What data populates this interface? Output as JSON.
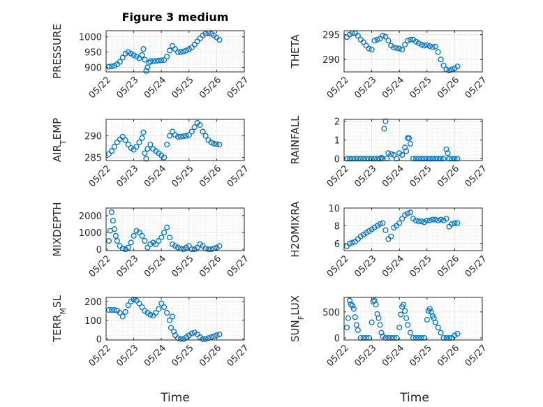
{
  "figure": {
    "title": "Figure 3 medium",
    "marker_color": "#0072BD",
    "xlabel": "Time",
    "x_ticks": [
      "05/22",
      "05/23",
      "05/24",
      "05/25",
      "05/26",
      "05/27"
    ]
  },
  "chart_data": [
    {
      "type": "scatter",
      "ylabel": "PRESSURE",
      "xlim": [
        0,
        5
      ],
      "ylim": [
        885,
        1020
      ],
      "y_ticks": [
        900,
        950,
        1000
      ],
      "y_tick_labels": [
        "900",
        "950",
        "1000"
      ],
      "grid": true,
      "x": [
        0.1,
        0.2,
        0.3,
        0.4,
        0.5,
        0.6,
        0.7,
        0.8,
        0.9,
        1.0,
        1.1,
        1.2,
        1.3,
        1.35,
        1.4,
        1.45,
        1.5,
        1.55,
        1.6,
        1.7,
        1.8,
        1.9,
        2.0,
        2.1,
        2.2,
        2.3,
        2.4,
        2.5,
        2.6,
        2.7,
        2.8,
        2.9,
        3.0,
        3.1,
        3.2,
        3.3,
        3.4,
        3.5,
        3.6,
        3.7,
        3.8,
        3.9,
        4.0,
        4.1
      ],
      "y": [
        902,
        903,
        905,
        910,
        918,
        932,
        945,
        950,
        945,
        940,
        935,
        930,
        940,
        960,
        925,
        888,
        900,
        915,
        920,
        920,
        921,
        922,
        923,
        924,
        935,
        955,
        970,
        960,
        950,
        950,
        952,
        955,
        960,
        965,
        975,
        985,
        995,
        1005,
        1010,
        1012,
        1010,
        1005,
        998,
        990
      ]
    },
    {
      "type": "scatter",
      "ylabel": "THETA",
      "xlim": [
        0,
        5
      ],
      "ylim": [
        287.5,
        295.8
      ],
      "y_ticks": [
        290,
        295
      ],
      "y_tick_labels": [
        "290",
        "295"
      ],
      "grid": true,
      "x": [
        0.1,
        0.2,
        0.3,
        0.4,
        0.5,
        0.6,
        0.7,
        0.8,
        0.9,
        1.0,
        1.1,
        1.2,
        1.3,
        1.4,
        1.5,
        1.6,
        1.7,
        1.8,
        1.9,
        2.0,
        2.1,
        2.2,
        2.3,
        2.4,
        2.5,
        2.6,
        2.7,
        2.8,
        2.9,
        3.0,
        3.1,
        3.2,
        3.3,
        3.4,
        3.5,
        3.6,
        3.7,
        3.8,
        3.9,
        4.0,
        4.1
      ],
      "y": [
        294.5,
        295.0,
        295.3,
        295.3,
        294.8,
        294.0,
        293.5,
        292.8,
        292.2,
        292.0,
        293.8,
        294.0,
        294.2,
        294.8,
        294.6,
        293.8,
        292.8,
        292.4,
        292.3,
        292.2,
        292.0,
        293.0,
        293.8,
        294.0,
        294.0,
        293.6,
        293.3,
        293.0,
        292.8,
        292.9,
        292.7,
        292.5,
        292.6,
        291.5,
        290.0,
        288.8,
        288.0,
        287.8,
        288.0,
        288.2,
        288.6
      ]
    },
    {
      "type": "scatter",
      "ylabel": "AIR_TEMP",
      "xlim": [
        0,
        5
      ],
      "ylim": [
        284.3,
        293.8
      ],
      "y_ticks": [
        285,
        290
      ],
      "y_tick_labels": [
        "285",
        "290"
      ],
      "grid": true,
      "x": [
        0.1,
        0.2,
        0.3,
        0.4,
        0.5,
        0.6,
        0.7,
        0.8,
        0.9,
        1.0,
        1.1,
        1.2,
        1.3,
        1.35,
        1.4,
        1.45,
        1.5,
        1.6,
        1.7,
        1.8,
        1.9,
        2.0,
        2.1,
        2.2,
        2.3,
        2.4,
        2.5,
        2.6,
        2.7,
        2.8,
        2.9,
        3.0,
        3.1,
        3.2,
        3.3,
        3.4,
        3.5,
        3.6,
        3.7,
        3.8,
        3.9,
        4.0,
        4.1
      ],
      "y": [
        285.8,
        286.5,
        287.5,
        288.5,
        289.2,
        289.8,
        289.0,
        288.0,
        287.2,
        286.8,
        287.5,
        288.5,
        289.5,
        290.8,
        286.0,
        284.7,
        287.0,
        288.0,
        287.0,
        286.5,
        286.0,
        285.5,
        285.0,
        288.0,
        290.0,
        291.0,
        290.2,
        289.8,
        289.8,
        289.9,
        290.0,
        290.2,
        291.0,
        292.0,
        293.0,
        292.5,
        291.0,
        290.0,
        289.0,
        288.5,
        288.2,
        288.1,
        288.0
      ]
    },
    {
      "type": "scatter",
      "ylabel": "RAINFALL",
      "xlim": [
        0,
        5
      ],
      "ylim": [
        -0.1,
        2.1
      ],
      "y_ticks": [
        0,
        1,
        2
      ],
      "y_tick_labels": [
        "0",
        "1",
        "2"
      ],
      "grid": true,
      "x": [
        0.1,
        0.2,
        0.3,
        0.4,
        0.5,
        0.6,
        0.7,
        0.8,
        0.9,
        1.0,
        1.1,
        1.2,
        1.3,
        1.35,
        1.4,
        1.45,
        1.5,
        1.55,
        1.6,
        1.7,
        1.8,
        1.9,
        2.0,
        2.1,
        2.2,
        2.25,
        2.3,
        2.35,
        2.4,
        2.5,
        2.6,
        2.7,
        2.8,
        2.9,
        3.0,
        3.1,
        3.2,
        3.3,
        3.4,
        3.5,
        3.6,
        3.7,
        3.75,
        3.8,
        3.9,
        4.0,
        4.1
      ],
      "y": [
        0,
        0,
        0,
        0,
        0,
        0,
        0,
        0,
        0,
        0,
        0,
        0,
        0,
        0.05,
        0,
        1.6,
        2.0,
        0,
        0.3,
        0.25,
        0.2,
        0,
        0.3,
        0.2,
        0.6,
        0.4,
        1.1,
        1.1,
        0.8,
        0,
        0,
        0,
        0,
        0,
        0,
        0,
        0,
        0,
        0,
        0,
        0,
        0.5,
        0.3,
        0,
        0,
        0,
        0
      ]
    },
    {
      "type": "scatter",
      "ylabel": "MIXDEPTH",
      "xlim": [
        0,
        5
      ],
      "ylim": [
        -80,
        2450
      ],
      "y_ticks": [
        0,
        1000,
        2000
      ],
      "y_tick_labels": [
        "0",
        "1000",
        "2000"
      ],
      "grid": true,
      "x": [
        0.1,
        0.15,
        0.2,
        0.25,
        0.3,
        0.35,
        0.4,
        0.5,
        0.6,
        0.7,
        0.8,
        0.9,
        1.0,
        1.1,
        1.2,
        1.3,
        1.4,
        1.5,
        1.6,
        1.7,
        1.8,
        1.9,
        2.0,
        2.1,
        2.2,
        2.3,
        2.4,
        2.5,
        2.6,
        2.7,
        2.8,
        2.9,
        3.0,
        3.1,
        3.2,
        3.3,
        3.4,
        3.5,
        3.6,
        3.7,
        3.8,
        3.9,
        4.0,
        4.1
      ],
      "y": [
        500,
        1100,
        2200,
        1700,
        1200,
        800,
        500,
        200,
        50,
        0,
        100,
        400,
        800,
        1100,
        1000,
        800,
        500,
        100,
        300,
        400,
        300,
        500,
        700,
        1000,
        1300,
        700,
        300,
        200,
        100,
        50,
        0,
        100,
        200,
        0,
        0,
        100,
        300,
        200,
        50,
        0,
        0,
        50,
        100,
        200
      ]
    },
    {
      "type": "scatter",
      "ylabel": "H2OMIXRA",
      "xlim": [
        0,
        5
      ],
      "ylim": [
        5.2,
        10
      ],
      "y_ticks": [
        6,
        8,
        10
      ],
      "y_tick_labels": [
        "6",
        "8",
        "10"
      ],
      "grid": true,
      "x": [
        0.1,
        0.2,
        0.3,
        0.4,
        0.5,
        0.6,
        0.7,
        0.8,
        0.9,
        1.0,
        1.1,
        1.2,
        1.3,
        1.4,
        1.5,
        1.6,
        1.7,
        1.8,
        1.9,
        2.0,
        2.1,
        2.2,
        2.3,
        2.4,
        2.5,
        2.6,
        2.7,
        2.8,
        2.9,
        3.0,
        3.1,
        3.2,
        3.3,
        3.4,
        3.5,
        3.6,
        3.7,
        3.8,
        3.9,
        4.0,
        4.1
      ],
      "y": [
        5.7,
        6.0,
        6.1,
        6.2,
        6.5,
        6.8,
        7.0,
        7.2,
        7.4,
        7.6,
        7.8,
        8.0,
        8.2,
        8.3,
        7.5,
        6.5,
        6.8,
        7.8,
        8.0,
        8.3,
        8.8,
        9.2,
        9.4,
        9.5,
        8.8,
        8.6,
        8.5,
        8.5,
        8.4,
        8.6,
        8.6,
        8.7,
        8.7,
        8.6,
        8.7,
        8.6,
        8.8,
        7.9,
        8.2,
        8.3,
        8.3
      ]
    },
    {
      "type": "scatter",
      "ylabel": "TERR_MSL",
      "xlim": [
        0,
        5
      ],
      "ylim": [
        -5,
        222
      ],
      "y_ticks": [
        0,
        100,
        200
      ],
      "y_tick_labels": [
        "0",
        "100",
        "200"
      ],
      "grid": true,
      "x": [
        0.1,
        0.2,
        0.3,
        0.4,
        0.5,
        0.6,
        0.7,
        0.8,
        0.9,
        1.0,
        1.1,
        1.2,
        1.3,
        1.4,
        1.5,
        1.6,
        1.7,
        1.8,
        1.9,
        2.0,
        2.1,
        2.2,
        2.3,
        2.35,
        2.4,
        2.45,
        2.5,
        2.6,
        2.7,
        2.8,
        2.9,
        3.0,
        3.1,
        3.2,
        3.3,
        3.4,
        3.5,
        3.6,
        3.7,
        3.8,
        3.9,
        4.0,
        4.1
      ],
      "y": [
        155,
        155,
        155,
        152,
        140,
        120,
        145,
        180,
        200,
        210,
        205,
        190,
        170,
        150,
        140,
        130,
        125,
        140,
        160,
        190,
        170,
        140,
        100,
        60,
        120,
        40,
        20,
        5,
        0,
        0,
        10,
        20,
        30,
        35,
        25,
        10,
        0,
        0,
        5,
        10,
        15,
        20,
        25
      ]
    },
    {
      "type": "scatter",
      "ylabel": "SUN_FLUX",
      "xlim": [
        0,
        5
      ],
      "ylim": [
        -40,
        780
      ],
      "y_ticks": [
        0,
        500
      ],
      "y_tick_labels": [
        "0",
        "500"
      ],
      "grid": true,
      "x": [
        0.1,
        0.15,
        0.2,
        0.25,
        0.3,
        0.35,
        0.4,
        0.45,
        0.5,
        0.6,
        0.7,
        0.8,
        0.9,
        1.0,
        1.05,
        1.1,
        1.15,
        1.2,
        1.25,
        1.3,
        1.35,
        1.4,
        1.5,
        1.6,
        1.7,
        1.8,
        1.9,
        2.0,
        2.05,
        2.1,
        2.15,
        2.2,
        2.25,
        2.3,
        2.4,
        2.5,
        2.6,
        2.7,
        2.8,
        2.9,
        3.0,
        3.05,
        3.1,
        3.15,
        3.2,
        3.25,
        3.3,
        3.4,
        3.5,
        3.6,
        3.7,
        3.8,
        3.9,
        4.0,
        4.1
      ],
      "y": [
        200,
        380,
        720,
        650,
        620,
        560,
        400,
        250,
        150,
        0,
        0,
        0,
        0,
        300,
        700,
        720,
        640,
        460,
        380,
        250,
        100,
        30,
        0,
        0,
        0,
        0,
        0,
        200,
        450,
        600,
        640,
        520,
        380,
        250,
        100,
        0,
        0,
        0,
        0,
        0,
        350,
        520,
        560,
        500,
        420,
        380,
        300,
        200,
        100,
        0,
        0,
        0,
        0,
        50,
        80
      ]
    }
  ]
}
